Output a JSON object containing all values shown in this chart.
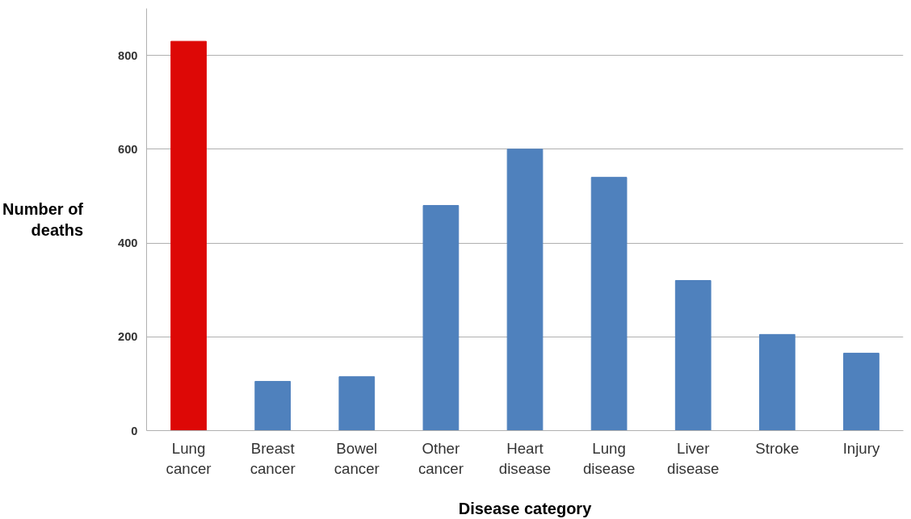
{
  "chart_data": {
    "type": "bar",
    "xlabel": "Disease category",
    "ylabel": "Number of\ndeaths",
    "categories": [
      "Lung\ncancer",
      "Breast\ncancer",
      "Bowel\ncancer",
      "Other\ncancer",
      "Heart\ndisease",
      "Lung\ndisease",
      "Liver\ndisease",
      "Stroke",
      "Injury"
    ],
    "values": [
      830,
      105,
      115,
      480,
      600,
      540,
      320,
      205,
      165
    ],
    "colors": [
      "#dd0806",
      "#4f81bd",
      "#4f81bd",
      "#4f81bd",
      "#4f81bd",
      "#4f81bd",
      "#4f81bd",
      "#4f81bd",
      "#4f81bd"
    ],
    "ylim": [
      0,
      900
    ],
    "yticks": [
      0,
      200,
      400,
      600,
      800
    ],
    "grid": "y"
  }
}
